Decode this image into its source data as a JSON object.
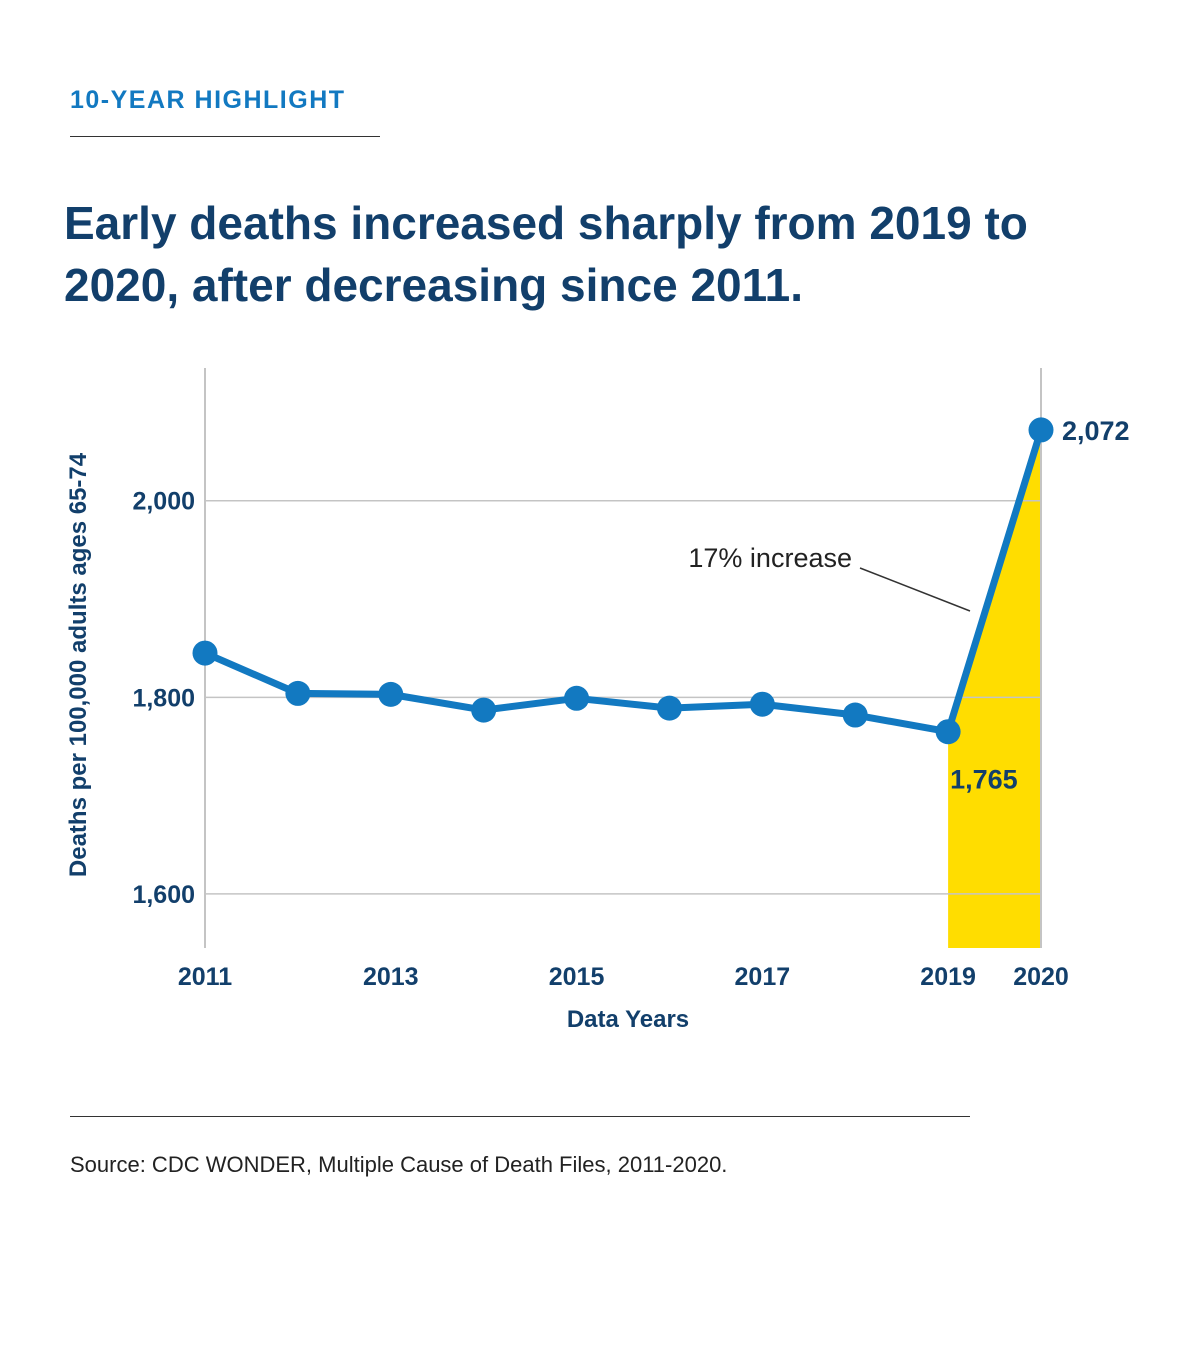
{
  "header": {
    "kicker": "10-YEAR HIGHLIGHT",
    "title": "Early deaths increased sharply from 2019 to 2020, after decreasing since 2011."
  },
  "footer": {
    "source": "Source: CDC WONDER, Multiple Cause of Death Files, 2011-2020."
  },
  "colors": {
    "line": "#1279c1",
    "highlight": "#ffdd00",
    "text": "#123f6b",
    "grid": "#c4c4c4"
  },
  "chart_data": {
    "type": "line",
    "title": "Early deaths increased sharply from 2019 to 2020, after decreasing since 2011.",
    "xlabel": "Data Years",
    "ylabel": "Deaths per 100,000 adults ages 65-74",
    "x": [
      2011,
      2012,
      2013,
      2014,
      2015,
      2016,
      2017,
      2018,
      2019,
      2020
    ],
    "series": [
      {
        "values": [
          1845,
          1804,
          1803,
          1787,
          1799,
          1789,
          1793,
          1782,
          1765,
          2072
        ]
      }
    ],
    "x_ticks": [
      {
        "value": 2011,
        "label": "2011"
      },
      {
        "value": 2013,
        "label": "2013"
      },
      {
        "value": 2015,
        "label": "2015"
      },
      {
        "value": 2017,
        "label": "2017"
      },
      {
        "value": 2019,
        "label": "2019"
      },
      {
        "value": 2020,
        "label": "2020"
      }
    ],
    "y_ticks": [
      {
        "value": 1600,
        "label": "1,600"
      },
      {
        "value": 1800,
        "label": "1,800"
      },
      {
        "value": 2000,
        "label": "2,000"
      }
    ],
    "ylim": [
      1545,
      2135
    ],
    "xlim": [
      2011,
      2020
    ],
    "grid": true,
    "highlight_range": [
      2019,
      2020
    ],
    "data_labels": [
      {
        "x": 2020,
        "value": 2072,
        "label": "2,072"
      },
      {
        "x": 2019,
        "value": 1765,
        "label": "1,765"
      }
    ],
    "annotations": [
      {
        "text": "17% increase",
        "x_from": 2019,
        "x_to": 2020
      }
    ]
  }
}
